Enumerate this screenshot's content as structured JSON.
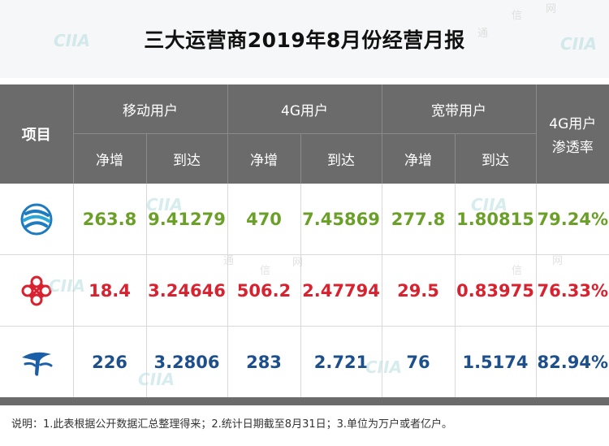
{
  "title": "三大运营商2019年8月份经营月报",
  "table": {
    "header_item": "项目",
    "groups": [
      {
        "label": "移动用户",
        "net_add": "净增",
        "total": "到达"
      },
      {
        "label": "4G用户",
        "net_add": "净增",
        "total": "到达"
      },
      {
        "label": "宽带用户",
        "net_add": "净增",
        "total": "到达"
      }
    ],
    "penetration_header_line1": "4G用户",
    "penetration_header_line2": "渗透率",
    "rows": [
      {
        "logo": "china-mobile-logo",
        "color": "#6aa028",
        "values": [
          "263.8",
          "9.41279",
          "470",
          "7.45869",
          "277.8",
          "1.80815",
          "79.24%"
        ]
      },
      {
        "logo": "china-unicom-logo",
        "color": "#d8222f",
        "values": [
          "18.4",
          "3.24646",
          "506.2",
          "2.47794",
          "29.5",
          "0.83975",
          "76.33%"
        ]
      },
      {
        "logo": "china-telecom-logo",
        "color": "#1d4f8c",
        "values": [
          "226",
          "3.2806",
          "283",
          "2.721",
          "76",
          "1.5174",
          "82.94%"
        ]
      }
    ]
  },
  "note": "说明：1.此表根据公开数据汇总整理得来；2.统计日期截至8月31日；3.单位为万户或者亿户。",
  "watermark": {
    "logo_text": "CIIA",
    "chars": [
      "通",
      "信",
      "网"
    ]
  },
  "colors": {
    "header_bg": "#6b6b6b",
    "mobile": "#6aa028",
    "unicom": "#d8222f",
    "telecom": "#1d4f8c"
  }
}
